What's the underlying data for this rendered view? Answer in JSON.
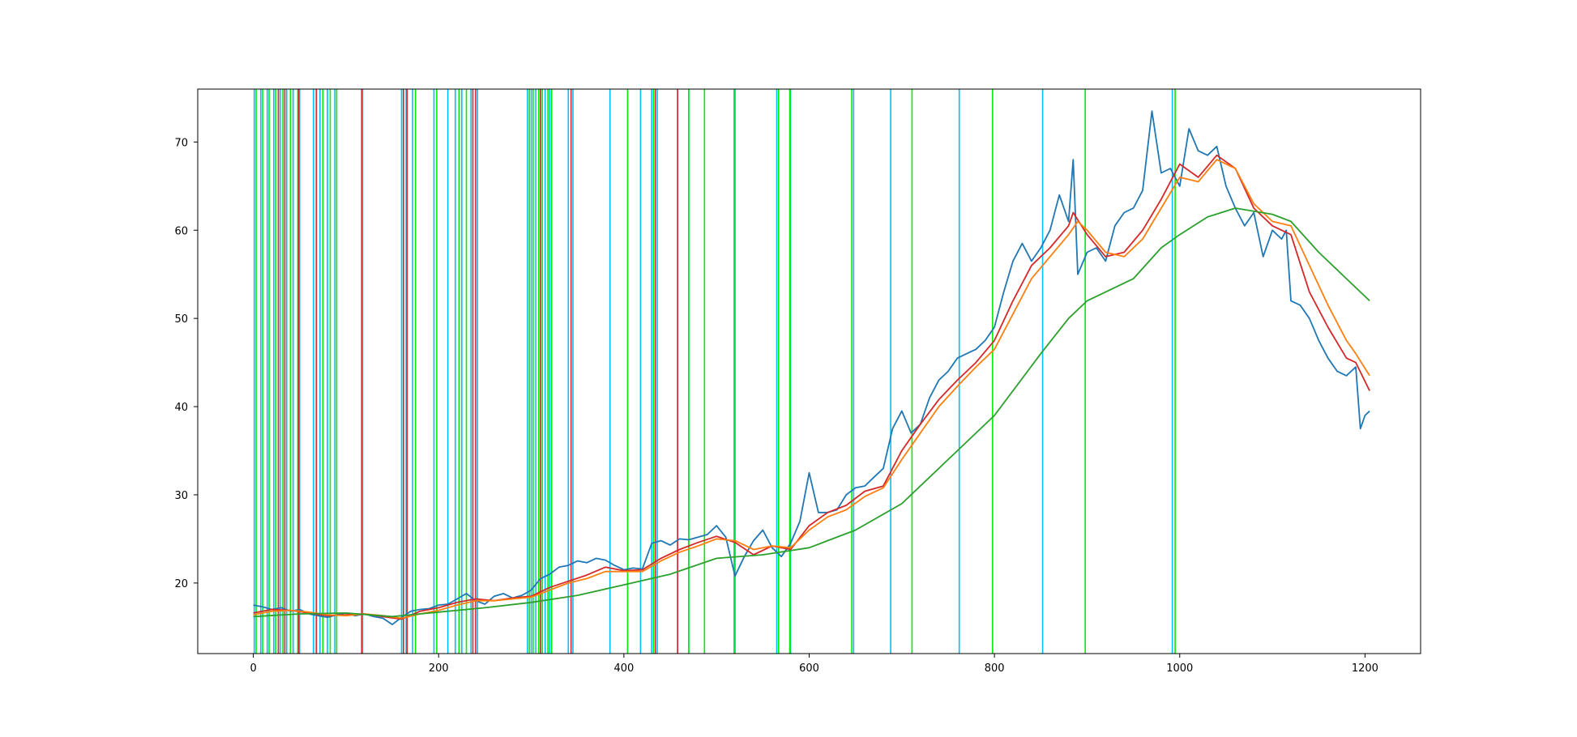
{
  "chart_data": {
    "type": "line",
    "title": "",
    "xlabel": "",
    "ylabel": "",
    "xlim": [
      -60,
      1260
    ],
    "ylim": [
      12,
      76
    ],
    "xticks": [
      0,
      200,
      400,
      600,
      800,
      1000,
      1200
    ],
    "yticks": [
      20,
      30,
      40,
      50,
      60,
      70
    ],
    "grid": false,
    "legend": "none",
    "series": [
      {
        "color": "#1f77b4",
        "x": [
          0,
          10,
          20,
          30,
          40,
          50,
          60,
          70,
          80,
          90,
          100,
          110,
          120,
          130,
          140,
          150,
          160,
          170,
          180,
          190,
          200,
          210,
          220,
          230,
          240,
          250,
          260,
          270,
          280,
          290,
          300,
          310,
          320,
          330,
          340,
          350,
          360,
          370,
          380,
          390,
          400,
          410,
          420,
          430,
          440,
          450,
          460,
          470,
          480,
          490,
          500,
          510,
          520,
          530,
          540,
          550,
          560,
          570,
          580,
          590,
          600,
          610,
          620,
          630,
          640,
          650,
          660,
          670,
          680,
          690,
          700,
          710,
          720,
          730,
          740,
          750,
          760,
          770,
          780,
          790,
          800,
          810,
          820,
          830,
          840,
          850,
          860,
          870,
          880,
          885,
          890,
          900,
          910,
          920,
          930,
          940,
          950,
          960,
          970,
          980,
          990,
          1000,
          1010,
          1020,
          1030,
          1040,
          1050,
          1060,
          1070,
          1080,
          1090,
          1100,
          1110,
          1115,
          1120,
          1130,
          1140,
          1150,
          1160,
          1170,
          1180,
          1190,
          1195,
          1200,
          1205
        ],
        "y": [
          17.5,
          17.3,
          17.0,
          17.2,
          16.8,
          17.0,
          16.5,
          16.3,
          16.1,
          16.4,
          16.6,
          16.3,
          16.5,
          16.2,
          16.0,
          15.3,
          16.1,
          16.8,
          17.0,
          17.1,
          17.5,
          17.6,
          18.2,
          18.8,
          18.0,
          17.6,
          18.5,
          18.8,
          18.3,
          18.6,
          19.2,
          20.5,
          21.0,
          21.8,
          22.0,
          22.5,
          22.3,
          22.8,
          22.6,
          22.0,
          21.5,
          21.7,
          21.6,
          24.5,
          24.8,
          24.3,
          25.0,
          24.9,
          25.2,
          25.5,
          26.5,
          25.2,
          20.8,
          23.0,
          24.8,
          26.0,
          24.0,
          23.0,
          24.5,
          27.0,
          32.5,
          28.0,
          28.0,
          28.3,
          30.0,
          30.8,
          31.0,
          32.0,
          33.0,
          37.5,
          39.5,
          37.0,
          38.0,
          41.0,
          43.0,
          44.0,
          45.5,
          46.0,
          46.5,
          47.5,
          49.0,
          53.0,
          56.5,
          58.5,
          56.5,
          58.0,
          60.0,
          64.0,
          61.0,
          68.0,
          55.0,
          57.5,
          58.0,
          56.5,
          60.5,
          62.0,
          62.5,
          64.5,
          73.5,
          66.5,
          67.0,
          65.0,
          71.5,
          69.0,
          68.5,
          69.5,
          65.0,
          62.5,
          60.5,
          62.0,
          57.0,
          60.0,
          59.0,
          60.0,
          52.0,
          51.5,
          50.0,
          47.5,
          45.5,
          44.0,
          43.5,
          44.5,
          37.5,
          39.0,
          39.5
        ]
      },
      {
        "color": "#d62728",
        "x": [
          0,
          20,
          40,
          60,
          80,
          100,
          120,
          140,
          160,
          180,
          200,
          220,
          240,
          260,
          280,
          300,
          320,
          340,
          360,
          380,
          400,
          420,
          440,
          460,
          480,
          500,
          520,
          540,
          560,
          580,
          600,
          620,
          640,
          660,
          680,
          700,
          720,
          740,
          760,
          780,
          800,
          820,
          840,
          860,
          880,
          885,
          900,
          920,
          940,
          960,
          980,
          1000,
          1020,
          1040,
          1060,
          1080,
          1100,
          1120,
          1140,
          1160,
          1180,
          1190,
          1205
        ],
        "y": [
          16.6,
          17.0,
          16.9,
          16.6,
          16.3,
          16.4,
          16.5,
          16.2,
          15.9,
          16.8,
          17.2,
          17.8,
          18.2,
          18.0,
          18.3,
          18.5,
          19.5,
          20.2,
          20.9,
          21.8,
          21.4,
          21.5,
          22.8,
          23.8,
          24.6,
          25.3,
          24.6,
          23.2,
          24.2,
          23.8,
          26.5,
          28.0,
          28.8,
          30.4,
          31.0,
          35.0,
          38.0,
          40.8,
          43.0,
          45.0,
          47.5,
          52.0,
          56.0,
          58.0,
          60.5,
          62.0,
          59.5,
          57.0,
          57.5,
          60.0,
          63.5,
          67.5,
          66.0,
          68.5,
          67.0,
          62.5,
          60.5,
          59.5,
          53.0,
          49.0,
          45.5,
          45.0,
          41.8
        ]
      },
      {
        "color": "#ff7f0e",
        "x": [
          0,
          20,
          40,
          60,
          80,
          100,
          120,
          140,
          160,
          180,
          200,
          220,
          240,
          260,
          280,
          300,
          320,
          340,
          360,
          380,
          400,
          420,
          440,
          460,
          480,
          500,
          520,
          540,
          560,
          580,
          600,
          620,
          640,
          660,
          680,
          700,
          720,
          740,
          760,
          780,
          800,
          820,
          840,
          860,
          880,
          890,
          900,
          920,
          940,
          960,
          980,
          1000,
          1020,
          1040,
          1060,
          1080,
          1100,
          1120,
          1140,
          1160,
          1180,
          1190,
          1205
        ],
        "y": [
          16.4,
          16.8,
          16.9,
          16.7,
          16.4,
          16.3,
          16.5,
          16.3,
          16.0,
          16.5,
          16.9,
          17.5,
          18.0,
          18.0,
          18.2,
          18.4,
          19.2,
          20.0,
          20.5,
          21.3,
          21.3,
          21.3,
          22.5,
          23.5,
          24.2,
          25.0,
          24.8,
          23.8,
          24.2,
          24.0,
          26.0,
          27.5,
          28.3,
          29.8,
          30.8,
          34.0,
          37.0,
          40.0,
          42.3,
          44.5,
          46.5,
          50.5,
          54.5,
          57.0,
          59.5,
          61.0,
          60.0,
          57.5,
          57.0,
          59.0,
          62.5,
          66.0,
          65.5,
          68.0,
          67.0,
          63.0,
          61.0,
          60.5,
          56.0,
          51.5,
          47.5,
          46.0,
          43.5
        ]
      },
      {
        "color": "#2ca02c",
        "x": [
          0,
          50,
          100,
          150,
          200,
          250,
          300,
          350,
          400,
          450,
          500,
          550,
          600,
          650,
          700,
          750,
          800,
          850,
          880,
          900,
          950,
          980,
          1000,
          1030,
          1060,
          1100,
          1120,
          1150,
          1180,
          1205
        ],
        "y": [
          16.2,
          16.5,
          16.6,
          16.2,
          16.7,
          17.2,
          17.8,
          18.6,
          19.8,
          21.0,
          22.8,
          23.2,
          24.0,
          26.0,
          29.0,
          34.0,
          39.0,
          46.0,
          50.0,
          52.0,
          54.5,
          58.0,
          59.5,
          61.5,
          62.5,
          61.8,
          61.0,
          57.5,
          54.5,
          52.0
        ]
      }
    ],
    "vertical_lines": {
      "deep_sky_blue": {
        "color": "#00bfff",
        "x": [
          1,
          8,
          15,
          22,
          29,
          36,
          43,
          50,
          65,
          72,
          80,
          88,
          118,
          160,
          165,
          172,
          195,
          210,
          218,
          225,
          235,
          242,
          296,
          300,
          305,
          310,
          315,
          320,
          340,
          345,
          385,
          418,
          430,
          436,
          458,
          470,
          520,
          565,
          580,
          648,
          688,
          762,
          852,
          992
        ]
      },
      "lime": {
        "color": "#00ee00",
        "x": [
          3,
          10,
          17,
          24,
          32,
          40,
          48,
          68,
          75,
          83,
          90,
          162,
          175,
          198,
          222,
          230,
          298,
          302,
          308,
          312,
          318,
          322,
          404,
          432,
          470,
          487,
          519,
          567,
          579,
          646,
          711,
          798,
          898,
          995
        ]
      },
      "red": {
        "color": "#d62728",
        "x": [
          27,
          34,
          49,
          68,
          117,
          162,
          166,
          237,
          240,
          310,
          343,
          434,
          458
        ]
      }
    }
  }
}
